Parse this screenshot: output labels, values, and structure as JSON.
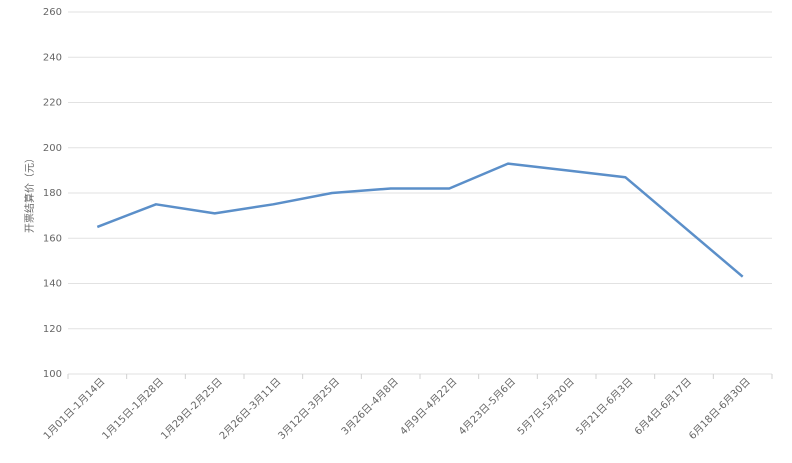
{
  "chart_data": {
    "type": "line",
    "y_label": "开票结算价（元）",
    "categories": [
      "1月01日-1月14日",
      "1月15日-1月28日",
      "1月29日-2月25日",
      "2月26日-3月11日",
      "3月12日-3月25日",
      "3月26日-4月8日",
      "4月9日-4月22日",
      "4月23日-5月6日",
      "5月7日-5月20日",
      "5月21日-6月3日",
      "6月4日-6月17日",
      "6月18日-6月30日"
    ],
    "values": [
      165,
      175,
      171,
      175,
      180,
      182,
      182,
      193,
      190,
      187,
      165,
      143
    ],
    "color": "#5b8fc9",
    "ylim": [
      100,
      260
    ],
    "yticks": [
      100,
      120,
      140,
      160,
      180,
      200,
      220,
      240,
      260
    ],
    "grid": true
  }
}
